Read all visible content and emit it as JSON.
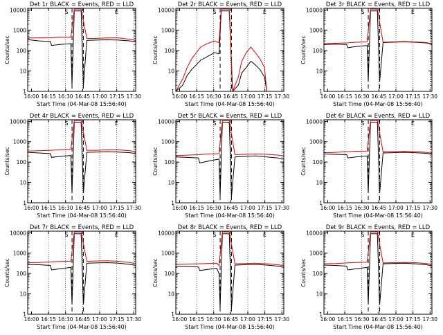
{
  "chart_data": [
    {
      "type": "line",
      "title": "Det 1r BLACK = Events, RED = LLD",
      "xlabel": "Start Time (04-Mar-08 15:56:40)",
      "ylabel": "Counts/sec",
      "x_ticks": [
        "16:00",
        "16:15",
        "16:30",
        "16:45",
        "17:00",
        "17:15",
        "17:30"
      ],
      "y_ticks": [
        "1",
        "10",
        "100",
        "1000",
        "10000"
      ],
      "xlim_min": [
        0,
        95
      ],
      "ylim": [
        1,
        12000
      ],
      "yscale": "log",
      "grid": "dotted vertical at hour quarters",
      "dashed_lines_min": [
        39,
        49
      ],
      "flag_labels": [
        "S",
        "E"
      ],
      "series": [
        {
          "color": "#000000",
          "x": [
            0,
            10,
            20,
            21,
            28,
            38,
            39,
            41,
            47,
            49,
            52,
            60,
            70,
            80,
            90,
            95
          ],
          "y": [
            350,
            300,
            280,
            180,
            200,
            220,
            2,
            9000,
            9000,
            2,
            320,
            330,
            340,
            330,
            300,
            280
          ]
        },
        {
          "color": "#e00000",
          "x": [
            0,
            10,
            20,
            28,
            38,
            41,
            47,
            52,
            60,
            70,
            80,
            90,
            95
          ],
          "y": [
            420,
            420,
            430,
            450,
            450,
            11000,
            11000,
            400,
            400,
            420,
            420,
            360,
            320
          ]
        }
      ]
    },
    {
      "type": "line",
      "title": "Det 2r BLACK = Events, RED = LLD",
      "xlabel": "Start Time (04-Mar-08 15:56:40)",
      "ylabel": "Counts/sec",
      "x_ticks": [
        "16:00",
        "16:15",
        "16:30",
        "16:45",
        "17:00",
        "17:15",
        "17:30"
      ],
      "y_ticks": [
        "1",
        "10",
        "100",
        "1000",
        "10000"
      ],
      "xlim_min": [
        0,
        95
      ],
      "ylim": [
        1,
        12000
      ],
      "yscale": "log",
      "grid": "dotted vertical at hour quarters",
      "dashed_lines_min": [
        39,
        49
      ],
      "flag_labels": [
        "S",
        "E"
      ],
      "series": [
        {
          "color": "#000000",
          "x": [
            0,
            6,
            10,
            14,
            18,
            22,
            26,
            30,
            34,
            38,
            40,
            47,
            50,
            55,
            58,
            62,
            66,
            70,
            74,
            78,
            80
          ],
          "y": [
            1,
            2,
            6,
            12,
            20,
            35,
            45,
            60,
            80,
            70,
            9000,
            9000,
            1,
            2,
            8,
            15,
            30,
            20,
            12,
            5,
            1
          ]
        },
        {
          "color": "#e00000",
          "x": [
            0,
            6,
            10,
            14,
            18,
            22,
            26,
            30,
            34,
            38,
            40,
            47,
            50,
            55,
            58,
            62,
            66,
            70,
            74,
            78,
            80
          ],
          "y": [
            1,
            4,
            15,
            40,
            80,
            150,
            200,
            250,
            300,
            250,
            11000,
            11000,
            1,
            5,
            30,
            80,
            150,
            80,
            40,
            15,
            1
          ]
        }
      ]
    },
    {
      "type": "line",
      "title": "Det 3r BLACK = Events, RED = LLD",
      "xlabel": "Start Time (04-Mar-08 15:56:40)",
      "ylabel": "Counts/sec",
      "x_ticks": [
        "16:00",
        "16:15",
        "16:30",
        "16:45",
        "17:00",
        "17:15",
        "17:30"
      ],
      "y_ticks": [
        "1",
        "10",
        "100",
        "1000",
        "10000"
      ],
      "xlim_min": [
        0,
        95
      ],
      "ylim": [
        1,
        12000
      ],
      "yscale": "log",
      "grid": "dotted vertical at hour quarters",
      "dashed_lines_min": [
        39,
        49
      ],
      "flag_labels": [
        "S",
        "E"
      ],
      "series": [
        {
          "color": "#000000",
          "x": [
            0,
            10,
            20,
            21,
            28,
            38,
            39,
            41,
            47,
            49,
            52,
            60,
            70,
            80,
            90,
            95
          ],
          "y": [
            200,
            210,
            200,
            140,
            160,
            180,
            3,
            9000,
            9000,
            3,
            250,
            260,
            270,
            260,
            240,
            210
          ]
        },
        {
          "color": "#e00000",
          "x": [
            0,
            10,
            20,
            28,
            38,
            41,
            47,
            52,
            60,
            70,
            80,
            90,
            95
          ],
          "y": [
            220,
            230,
            240,
            260,
            270,
            11000,
            11000,
            260,
            270,
            280,
            270,
            250,
            220
          ]
        }
      ]
    },
    {
      "type": "line",
      "title": "Det 4r BLACK = Events, RED = LLD",
      "xlabel": "Start Time (04-Mar-08 15:56:40)",
      "ylabel": "Counts/sec",
      "x_ticks": [
        "16:00",
        "16:15",
        "16:30",
        "16:45",
        "17:00",
        "17:15",
        "17:30"
      ],
      "y_ticks": [
        "1",
        "10",
        "100",
        "1000",
        "10000"
      ],
      "xlim_min": [
        0,
        95
      ],
      "ylim": [
        1,
        12000
      ],
      "yscale": "log",
      "grid": "dotted vertical at hour quarters",
      "dashed_lines_min": [
        39,
        49
      ],
      "flag_labels": [
        "S",
        "E"
      ],
      "series": [
        {
          "color": "#000000",
          "x": [
            0,
            10,
            20,
            21,
            28,
            38,
            39,
            41,
            47,
            49,
            52,
            60,
            70,
            80,
            90,
            95
          ],
          "y": [
            300,
            280,
            260,
            170,
            190,
            210,
            3,
            9000,
            9000,
            3,
            300,
            310,
            320,
            310,
            290,
            260
          ]
        },
        {
          "color": "#e00000",
          "x": [
            0,
            10,
            20,
            28,
            38,
            41,
            47,
            52,
            60,
            70,
            80,
            90,
            95
          ],
          "y": [
            350,
            360,
            380,
            400,
            420,
            11000,
            11000,
            380,
            380,
            400,
            400,
            360,
            320
          ]
        }
      ]
    },
    {
      "type": "line",
      "title": "Det 5r BLACK = Events, RED = LLD",
      "xlabel": "Start Time (04-Mar-08 15:56:40)",
      "ylabel": "Counts/sec",
      "x_ticks": [
        "16:00",
        "16:15",
        "16:30",
        "16:45",
        "17:00",
        "17:15",
        "17:30"
      ],
      "y_ticks": [
        "1",
        "10",
        "100",
        "1000",
        "10000"
      ],
      "xlim_min": [
        0,
        95
      ],
      "ylim": [
        1,
        12000
      ],
      "yscale": "log",
      "grid": "dotted vertical at hour quarters",
      "dashed_lines_min": [
        39,
        49
      ],
      "flag_labels": [
        "S",
        "E"
      ],
      "series": [
        {
          "color": "#000000",
          "x": [
            0,
            10,
            20,
            21,
            28,
            38,
            39,
            41,
            47,
            49,
            52,
            60,
            70,
            80,
            90,
            95
          ],
          "y": [
            180,
            170,
            160,
            90,
            110,
            140,
            2,
            9000,
            9000,
            2,
            180,
            190,
            200,
            180,
            160,
            140
          ]
        },
        {
          "color": "#e00000",
          "x": [
            0,
            10,
            20,
            28,
            38,
            41,
            47,
            52,
            60,
            70,
            80,
            90,
            95
          ],
          "y": [
            210,
            220,
            230,
            250,
            260,
            11000,
            11000,
            230,
            240,
            250,
            240,
            220,
            200
          ]
        }
      ]
    },
    {
      "type": "line",
      "title": "Det 6r BLACK = Events, RED = LLD",
      "xlabel": "Start Time (04-Mar-08 15:56:40)",
      "ylabel": "Counts/sec",
      "x_ticks": [
        "16:00",
        "16:15",
        "16:30",
        "16:45",
        "17:00",
        "17:15",
        "17:30"
      ],
      "y_ticks": [
        "1",
        "10",
        "100",
        "1000",
        "10000"
      ],
      "xlim_min": [
        0,
        95
      ],
      "ylim": [
        1,
        12000
      ],
      "yscale": "log",
      "grid": "dotted vertical at hour quarters",
      "dashed_lines_min": [
        39,
        49
      ],
      "flag_labels": [
        "S",
        "E"
      ],
      "series": [
        {
          "color": "#000000",
          "x": [
            0,
            10,
            20,
            21,
            28,
            38,
            39,
            41,
            47,
            49,
            52,
            60,
            70,
            80,
            90,
            95
          ],
          "y": [
            250,
            240,
            230,
            160,
            180,
            200,
            3,
            9000,
            9000,
            3,
            280,
            290,
            300,
            290,
            270,
            240
          ]
        },
        {
          "color": "#e00000",
          "x": [
            0,
            10,
            20,
            28,
            38,
            41,
            47,
            52,
            60,
            70,
            80,
            90,
            95
          ],
          "y": [
            290,
            300,
            320,
            340,
            350,
            11000,
            11000,
            320,
            330,
            340,
            330,
            300,
            270
          ]
        }
      ]
    },
    {
      "type": "line",
      "title": "Det 7r BLACK = Events, RED = LLD",
      "xlabel": "Start Time (04-Mar-08 15:56:40)",
      "ylabel": "Counts/sec",
      "x_ticks": [
        "16:00",
        "16:15",
        "16:30",
        "16:45",
        "17:00",
        "17:15",
        "17:30"
      ],
      "y_ticks": [
        "1",
        "10",
        "100",
        "1000",
        "10000"
      ],
      "xlim_min": [
        0,
        95
      ],
      "ylim": [
        1,
        12000
      ],
      "yscale": "log",
      "grid": "dotted vertical at hour quarters",
      "dashed_lines_min": [
        39,
        49
      ],
      "flag_labels": [
        "S",
        "E"
      ],
      "series": [
        {
          "color": "#000000",
          "x": [
            0,
            10,
            20,
            21,
            28,
            38,
            39,
            41,
            47,
            49,
            52,
            60,
            70,
            80,
            90,
            95
          ],
          "y": [
            280,
            270,
            250,
            150,
            170,
            200,
            3,
            9000,
            9000,
            3,
            320,
            330,
            340,
            320,
            280,
            250
          ]
        },
        {
          "color": "#e00000",
          "x": [
            0,
            10,
            20,
            28,
            38,
            41,
            47,
            52,
            60,
            70,
            80,
            90,
            95
          ],
          "y": [
            340,
            350,
            370,
            390,
            400,
            11000,
            11000,
            400,
            410,
            420,
            400,
            350,
            300
          ]
        }
      ]
    },
    {
      "type": "line",
      "title": "Det 8r BLACK = Events, RED = LLD",
      "xlabel": "Start Time (04-Mar-08 15:56:40)",
      "ylabel": "Counts/sec",
      "x_ticks": [
        "16:00",
        "16:15",
        "16:30",
        "16:45",
        "17:00",
        "17:15",
        "17:30"
      ],
      "y_ticks": [
        "1",
        "10",
        "100",
        "1000",
        "10000"
      ],
      "xlim_min": [
        0,
        95
      ],
      "ylim": [
        1,
        12000
      ],
      "yscale": "log",
      "grid": "dotted vertical at hour quarters",
      "dashed_lines_min": [
        39,
        49
      ],
      "flag_labels": [
        "S",
        "E"
      ],
      "series": [
        {
          "color": "#000000",
          "x": [
            0,
            10,
            20,
            21,
            28,
            36,
            38,
            39,
            41,
            47,
            49,
            52,
            60,
            70,
            80,
            90,
            95
          ],
          "y": [
            230,
            220,
            210,
            140,
            160,
            180,
            100,
            2,
            9000,
            9000,
            2,
            260,
            270,
            280,
            260,
            230,
            200
          ]
        },
        {
          "color": "#e00000",
          "x": [
            0,
            10,
            20,
            28,
            36,
            38,
            41,
            47,
            52,
            60,
            70,
            80,
            90,
            95
          ],
          "y": [
            280,
            290,
            300,
            310,
            320,
            250,
            11000,
            11000,
            300,
            310,
            320,
            300,
            270,
            240
          ]
        }
      ]
    },
    {
      "type": "line",
      "title": "Det 9r BLACK = Events, RED = LLD",
      "xlabel": "Start Time (04-Mar-08 15:56:40)",
      "ylabel": "Counts/sec",
      "x_ticks": [
        "16:00",
        "16:15",
        "16:30",
        "16:45",
        "17:00",
        "17:15",
        "17:30"
      ],
      "y_ticks": [
        "1",
        "10",
        "100",
        "1000",
        "10000"
      ],
      "xlim_min": [
        0,
        95
      ],
      "ylim": [
        1,
        12000
      ],
      "yscale": "log",
      "grid": "dotted vertical at hour quarters",
      "dashed_lines_min": [
        39,
        49
      ],
      "flag_labels": [
        "S",
        "E"
      ],
      "series": [
        {
          "color": "#000000",
          "x": [
            0,
            10,
            20,
            21,
            28,
            38,
            39,
            41,
            47,
            49,
            52,
            60,
            70,
            80,
            90,
            95
          ],
          "y": [
            260,
            250,
            230,
            150,
            170,
            200,
            3,
            9000,
            9000,
            3,
            300,
            310,
            320,
            300,
            270,
            240
          ]
        },
        {
          "color": "#e00000",
          "x": [
            0,
            10,
            20,
            28,
            38,
            41,
            47,
            52,
            60,
            70,
            80,
            90,
            95
          ],
          "y": [
            300,
            310,
            330,
            350,
            360,
            11000,
            11000,
            330,
            340,
            350,
            340,
            310,
            280
          ]
        }
      ]
    }
  ]
}
